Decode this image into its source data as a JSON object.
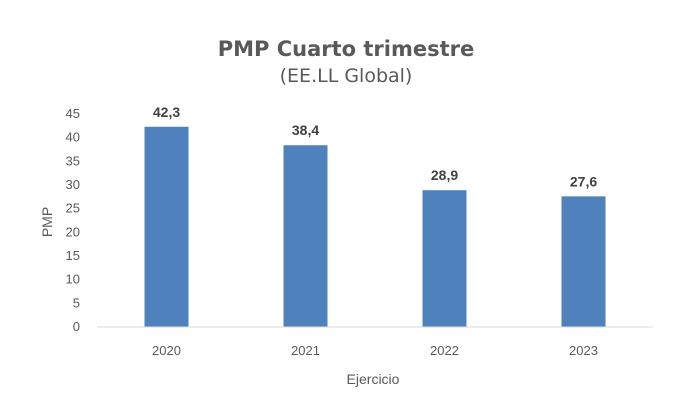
{
  "chart_data": {
    "type": "bar",
    "title": "PMP Cuarto trimestre",
    "subtitle": "(EE.LL Global)",
    "xlabel": "Ejercicio",
    "ylabel": "PMP",
    "categories": [
      "2020",
      "2021",
      "2022",
      "2023"
    ],
    "values": [
      42.3,
      38.4,
      28.9,
      27.6
    ],
    "data_labels": [
      "42,3",
      "38,4",
      "28,9",
      "27,6"
    ],
    "y_ticks": [
      0,
      5,
      10,
      15,
      20,
      25,
      30,
      35,
      40,
      45
    ],
    "ylim": [
      0,
      45
    ],
    "grid": false,
    "legend": "none",
    "bar_color": "#4F81BD"
  }
}
